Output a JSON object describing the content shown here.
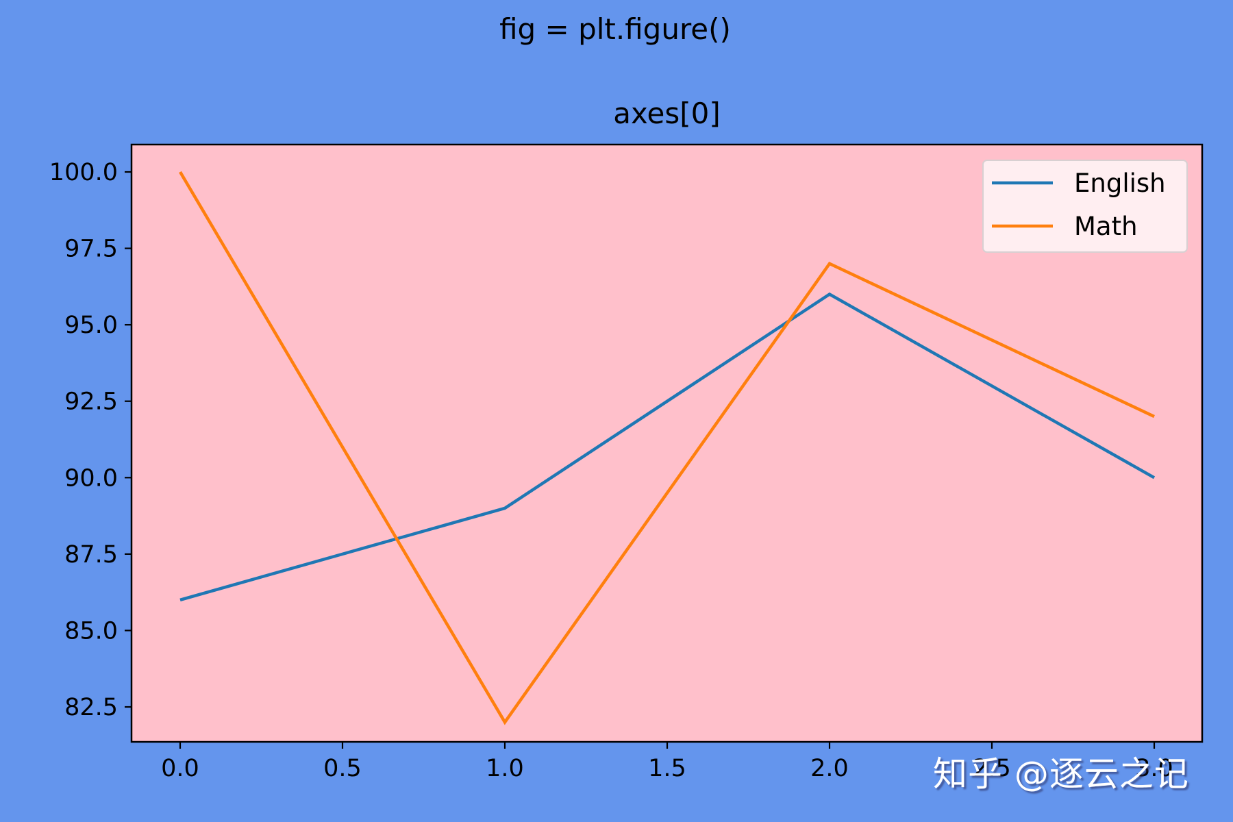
{
  "figure": {
    "suptitle": "fig = plt.figure()",
    "background": "#6495ED",
    "axes_background": "#FFC0CB"
  },
  "watermark": "知乎 @逐云之记",
  "chart_data": {
    "type": "line",
    "title": "axes[0]",
    "xlabel": "",
    "ylabel": "",
    "x": [
      0,
      1,
      2,
      3
    ],
    "series": [
      {
        "name": "English",
        "values": [
          86,
          89,
          96,
          90
        ],
        "color": "#1f77b4"
      },
      {
        "name": "Math",
        "values": [
          100,
          82,
          97,
          92
        ],
        "color": "#ff7f0e"
      }
    ],
    "xlim": [
      -0.15,
      3.15
    ],
    "ylim": [
      81.1,
      100.9
    ],
    "xticks": [
      0.0,
      0.5,
      1.0,
      1.5,
      2.0,
      2.5,
      3.0
    ],
    "xtick_labels": [
      "0.0",
      "0.5",
      "1.0",
      "1.5",
      "2.0",
      "2.5",
      "3.0"
    ],
    "yticks": [
      82.5,
      85.0,
      87.5,
      90.0,
      92.5,
      95.0,
      97.5,
      100.0
    ],
    "ytick_labels": [
      "82.5",
      "85.0",
      "87.5",
      "90.0",
      "92.5",
      "95.0",
      "97.5",
      "100.0"
    ],
    "grid": false,
    "legend": {
      "position": "upper right",
      "entries": [
        "English",
        "Math"
      ]
    }
  }
}
